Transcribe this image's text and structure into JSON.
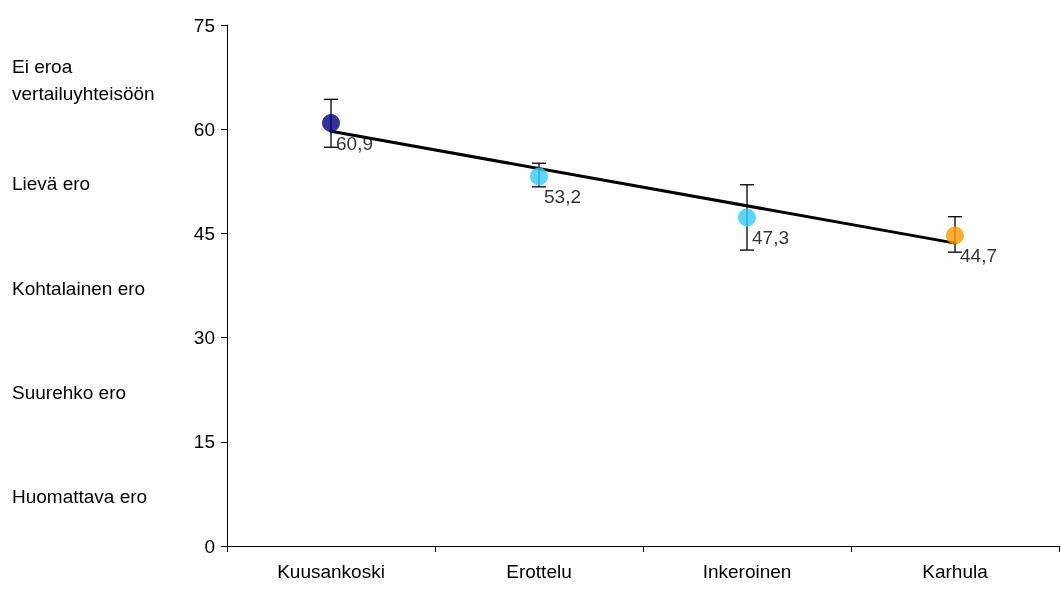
{
  "chart_data": {
    "type": "scatter",
    "categories": [
      "Kuusankoski",
      "Erottelu",
      "Inkeroinen",
      "Karhula"
    ],
    "series": [
      {
        "values": [
          60.9,
          53.2,
          47.3,
          44.7
        ],
        "colors": [
          "#000080",
          "#33ccff",
          "#33ccff",
          "#ff9900"
        ],
        "errors": [
          [
            57.4,
            64.3
          ],
          [
            51.7,
            55.1
          ],
          [
            42.6,
            52.0
          ],
          [
            42.3,
            47.4
          ]
        ],
        "value_labels": [
          "60,9",
          "53,2",
          "47,3",
          "44,7"
        ],
        "marker": "circle"
      },
      {
        "type": "line",
        "x": [
          "Kuusankoski",
          "Karhula"
        ],
        "values": [
          59.7,
          43.6
        ],
        "color": "#000000",
        "marker": "none",
        "line_style": "solid"
      }
    ],
    "ylim": [
      0,
      75
    ],
    "yticks": [
      0,
      15,
      30,
      45,
      60,
      75
    ],
    "grid": false,
    "annotations": [
      "Ei eroa vertailuyhteisöön",
      "Lievä ero",
      "Kohtalainen ero",
      "Suurehko ero",
      "Huomattava ero"
    ]
  }
}
